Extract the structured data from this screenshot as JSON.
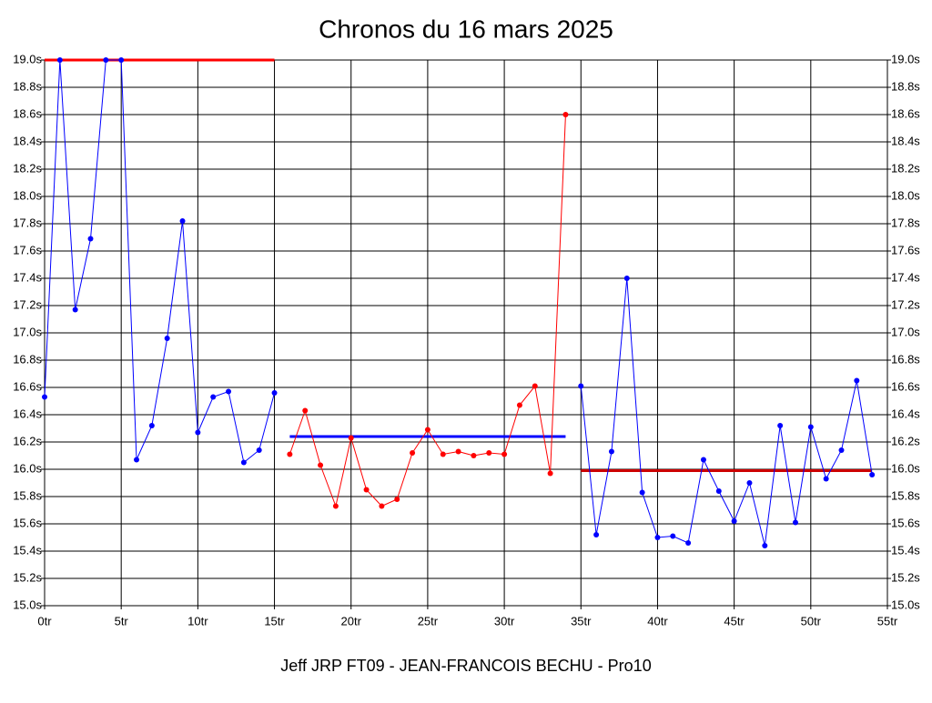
{
  "chart_data": {
    "type": "line",
    "title": "Chronos du 16 mars 2025",
    "x_label": "Jeff JRP FT09 - JEAN-FRANCOIS BECHU - Pro10",
    "xlim": [
      0,
      55
    ],
    "ylim": [
      15.0,
      19.0
    ],
    "grid": true,
    "xticks": [
      {
        "value": 0,
        "label": "0tr"
      },
      {
        "value": 5,
        "label": "5tr"
      },
      {
        "value": 10,
        "label": "10tr"
      },
      {
        "value": 15,
        "label": "15tr"
      },
      {
        "value": 20,
        "label": "20tr"
      },
      {
        "value": 25,
        "label": "25tr"
      },
      {
        "value": 30,
        "label": "30tr"
      },
      {
        "value": 35,
        "label": "35tr"
      },
      {
        "value": 40,
        "label": "40tr"
      },
      {
        "value": 45,
        "label": "45tr"
      },
      {
        "value": 50,
        "label": "50tr"
      },
      {
        "value": 55,
        "label": "55tr"
      }
    ],
    "yticks": [
      {
        "value": 15.0,
        "label": "15.0s"
      },
      {
        "value": 15.2,
        "label": "15.2s"
      },
      {
        "value": 15.4,
        "label": "15.4s"
      },
      {
        "value": 15.6,
        "label": "15.6s"
      },
      {
        "value": 15.8,
        "label": "15.8s"
      },
      {
        "value": 16.0,
        "label": "16.0s"
      },
      {
        "value": 16.2,
        "label": "16.2s"
      },
      {
        "value": 16.4,
        "label": "16.4s"
      },
      {
        "value": 16.6,
        "label": "16.6s"
      },
      {
        "value": 16.8,
        "label": "16.8s"
      },
      {
        "value": 17.0,
        "label": "17.0s"
      },
      {
        "value": 17.2,
        "label": "17.2s"
      },
      {
        "value": 17.4,
        "label": "17.4s"
      },
      {
        "value": 17.6,
        "label": "17.6s"
      },
      {
        "value": 17.8,
        "label": "17.8s"
      },
      {
        "value": 18.0,
        "label": "18.0s"
      },
      {
        "value": 18.2,
        "label": "18.2s"
      },
      {
        "value": 18.4,
        "label": "18.4s"
      },
      {
        "value": 18.6,
        "label": "18.6s"
      },
      {
        "value": 18.8,
        "label": "18.8s"
      },
      {
        "value": 19.0,
        "label": "19.0s"
      }
    ],
    "series": [
      {
        "color": "#0000ff",
        "x": [
          0,
          1,
          2,
          3,
          4,
          5,
          6,
          7,
          8,
          9,
          10,
          11,
          12,
          13,
          14,
          15
        ],
        "values": [
          16.53,
          19.0,
          17.17,
          17.69,
          19.0,
          19.0,
          16.07,
          16.32,
          16.96,
          17.82,
          16.27,
          16.53,
          16.57,
          16.05,
          16.14,
          16.56
        ]
      },
      {
        "color": "#ff0000",
        "x": [
          16,
          17,
          18,
          19,
          20,
          21,
          22,
          23,
          24,
          25,
          26,
          27,
          28,
          29,
          30,
          31,
          32,
          33,
          34
        ],
        "values": [
          16.11,
          16.43,
          16.03,
          15.73,
          16.23,
          15.85,
          15.73,
          15.78,
          16.12,
          16.29,
          16.11,
          16.13,
          16.1,
          16.12,
          16.11,
          16.47,
          16.61,
          15.97,
          18.6
        ]
      },
      {
        "color": "#0000ff",
        "x": [
          35,
          36,
          37,
          38,
          39,
          40,
          41,
          42,
          43,
          44,
          45,
          46,
          47,
          48,
          49,
          50,
          51,
          52,
          53,
          54
        ],
        "values": [
          16.61,
          15.52,
          16.13,
          17.4,
          15.83,
          15.5,
          15.51,
          15.46,
          16.07,
          15.84,
          15.62,
          15.9,
          15.44,
          16.32,
          15.61,
          16.31,
          15.93,
          16.14,
          16.65,
          15.96
        ]
      }
    ],
    "reference_lines": [
      {
        "y": 19.0,
        "x": [
          0,
          15
        ],
        "color": "#ff0000"
      },
      {
        "y": 16.24,
        "x": [
          16,
          34
        ],
        "color": "#0000ff"
      },
      {
        "y": 15.99,
        "x": [
          35,
          54
        ],
        "color": "#cc0000"
      }
    ]
  }
}
